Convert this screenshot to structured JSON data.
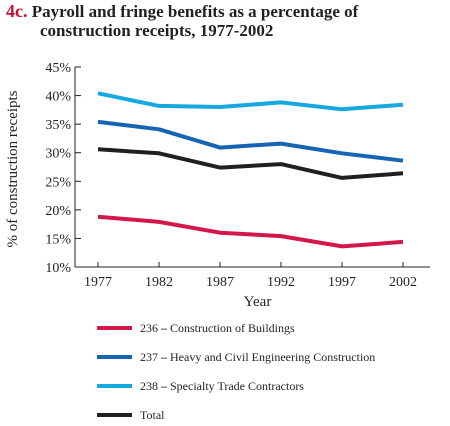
{
  "title": {
    "number": "4c.",
    "line1": "Payroll and fringe benefits as a percentage of",
    "line2": "construction receipts, 1977-2002"
  },
  "chart_data": {
    "type": "line",
    "title": "Payroll and fringe benefits as a percentage of construction receipts, 1977-2002",
    "xlabel": "Year",
    "ylabel": "% of construction receipts",
    "x": [
      "1977",
      "1982",
      "1987",
      "1992",
      "1997",
      "2002"
    ],
    "ylim": [
      10,
      45
    ],
    "yticks": [
      "10%",
      "15%",
      "20%",
      "25%",
      "30%",
      "35%",
      "40%",
      "45%"
    ],
    "grid": false,
    "legend_position": "bottom",
    "series": [
      {
        "code": "236",
        "name": "Construction of Buildings",
        "color": "#d4174a",
        "values": [
          18.8,
          17.9,
          16.0,
          15.4,
          13.6,
          14.4
        ]
      },
      {
        "code": "237",
        "name": "Heavy and Civil Engineering Construction",
        "color": "#1565b4",
        "values": [
          35.4,
          34.1,
          30.9,
          31.6,
          29.9,
          28.6
        ]
      },
      {
        "code": "238",
        "name": "Specialty Trade Contractors",
        "color": "#16a8e0",
        "values": [
          40.4,
          38.2,
          38.0,
          38.8,
          37.6,
          38.4
        ]
      },
      {
        "code": "",
        "name": "Total",
        "color": "#231f20",
        "values": [
          30.6,
          29.9,
          27.4,
          28.0,
          25.6,
          26.4
        ]
      }
    ]
  }
}
